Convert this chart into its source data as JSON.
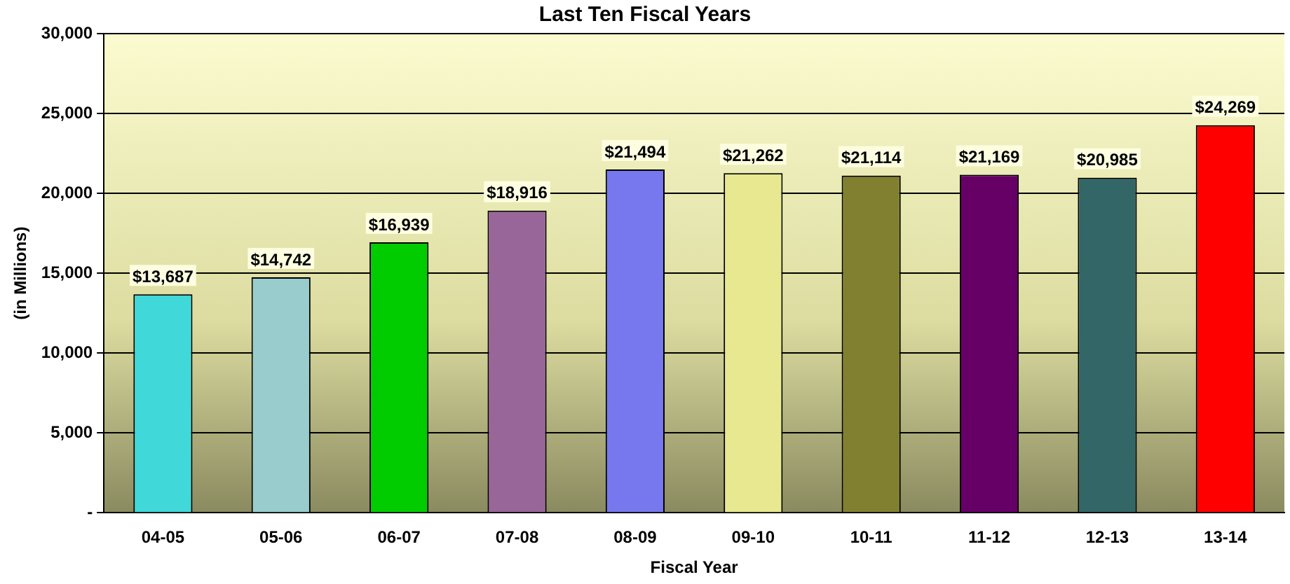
{
  "chart_data": {
    "type": "bar",
    "title": "Last Ten Fiscal Years",
    "xlabel": "Fiscal Year",
    "ylabel": "(in Millions)",
    "categories": [
      "04-05",
      "05-06",
      "06-07",
      "07-08",
      "08-09",
      "09-10",
      "10-11",
      "11-12",
      "12-13",
      "13-14"
    ],
    "values": [
      13687,
      14742,
      16939,
      18916,
      21494,
      21262,
      21114,
      21169,
      20985,
      24269
    ],
    "colors": [
      "#40d8d8",
      "#99cccc",
      "#00cc00",
      "#996699",
      "#7777ee",
      "#e8e890",
      "#808030",
      "#660066",
      "#336666",
      "#ff0000"
    ],
    "value_labels": [
      "$13,687",
      "$14,742",
      "$16,939",
      "$18,916",
      "$21,494",
      "$21,262",
      "$21,114",
      "$21,169",
      "$20,985",
      "$24,269"
    ],
    "ylim": [
      0,
      30000
    ],
    "yticks": [
      {
        "value": 0,
        "label": "-"
      },
      {
        "value": 5000,
        "label": "5,000"
      },
      {
        "value": 10000,
        "label": "10,000"
      },
      {
        "value": 15000,
        "label": "15,000"
      },
      {
        "value": 20000,
        "label": "20,000"
      },
      {
        "value": 25000,
        "label": "25,000"
      },
      {
        "value": 30000,
        "label": "30,000"
      }
    ],
    "grid": "y",
    "legend": false
  }
}
